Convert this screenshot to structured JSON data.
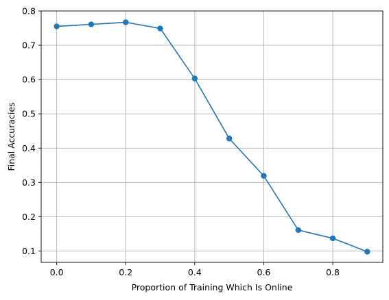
{
  "chart_data": {
    "type": "line",
    "xlabel": "Proportion of Training Which Is Online",
    "ylabel": "Final Accuracies",
    "xlim": [
      -0.045,
      0.945
    ],
    "ylim": [
      0.067,
      0.8
    ],
    "xticks": [
      0.0,
      0.2,
      0.4,
      0.6,
      0.8
    ],
    "xtick_labels": [
      "0.0",
      "0.2",
      "0.4",
      "0.6",
      "0.8"
    ],
    "yticks": [
      0.1,
      0.2,
      0.3,
      0.4,
      0.5,
      0.6,
      0.7,
      0.8
    ],
    "ytick_labels": [
      "0.1",
      "0.2",
      "0.3",
      "0.4",
      "0.5",
      "0.6",
      "0.7",
      "0.8"
    ],
    "grid": true,
    "x": [
      0.0,
      0.1,
      0.2,
      0.3,
      0.4,
      0.5,
      0.6,
      0.7,
      0.8,
      0.9
    ],
    "series": [
      {
        "values": [
          0.755,
          0.761,
          0.767,
          0.749,
          0.603,
          0.428,
          0.319,
          0.161,
          0.137,
          0.098
        ],
        "color": "#1f77b4",
        "marker": "circle"
      }
    ]
  }
}
